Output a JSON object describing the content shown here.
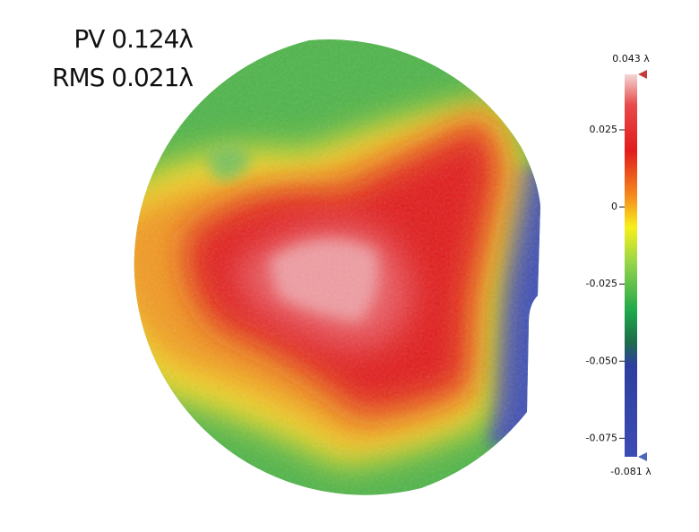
{
  "chart_data": {
    "type": "surface-map",
    "annotations": [
      "PV 0.124λ",
      "RMS 0.021λ"
    ],
    "colorbar": {
      "ylim": [
        -0.081,
        0.043
      ],
      "ylim_labels": [
        "-0.081 λ",
        "0.043 λ"
      ],
      "yticks": [
        0.025,
        0,
        -0.025,
        {
          "value": -0.05,
          "label": "-0.050"
        },
        -0.075
      ]
    }
  }
}
